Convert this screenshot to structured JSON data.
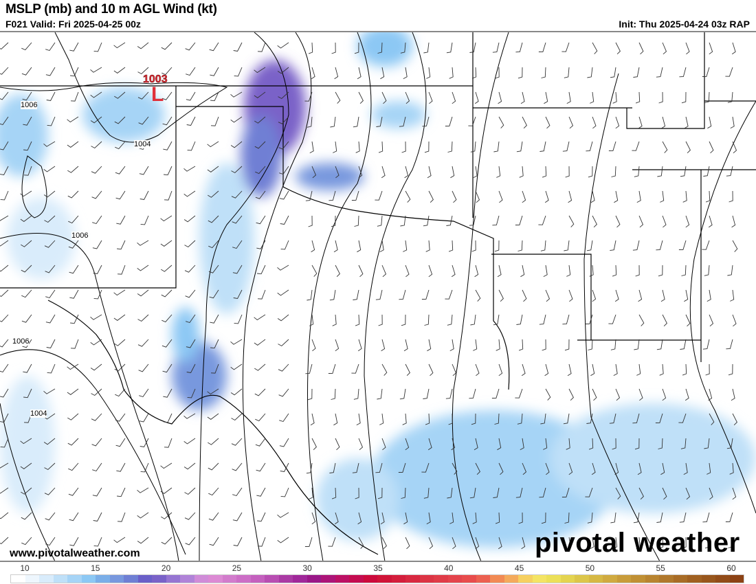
{
  "header": {
    "title": "MSLP (mb) and 10 m AGL Wind (kt)",
    "valid": "F021 Valid: Fri 2025-04-25 00z",
    "init": "Init: Thu 2025-04-24 03z RAP"
  },
  "map": {
    "low_center": {
      "label": "L",
      "pressure": "1003",
      "color": "#e0303a"
    },
    "isobar_labels": [
      "1006",
      "1004",
      "1006",
      "1006",
      "1004"
    ]
  },
  "footer": {
    "website": "www.pivotalweather.com",
    "brand": "pivotal weather"
  },
  "colorbar": {
    "unit": "kt",
    "ticks": [
      "10",
      "15",
      "20",
      "25",
      "30",
      "35",
      "40",
      "45",
      "50",
      "55",
      "60"
    ],
    "colors": [
      "#ffffff",
      "#eef6fd",
      "#d9ecfb",
      "#bfe0f8",
      "#a6d4f6",
      "#8cc8f4",
      "#7aaee8",
      "#7898de",
      "#6f7fd4",
      "#6a5fc8",
      "#7a62c8",
      "#9675d2",
      "#b083d8",
      "#d08cd8",
      "#dc8ad4",
      "#d27ccc",
      "#cc6ec6",
      "#c460be",
      "#b84eb2",
      "#aa3aa4",
      "#a0289a",
      "#9a1888",
      "#ac1478",
      "#bc1064",
      "#c40c50",
      "#cc0a3c",
      "#d01438",
      "#d41e3c",
      "#d82840",
      "#dc3444",
      "#e03c48",
      "#e4444c",
      "#e84c4c",
      "#ec6050",
      "#f28a54",
      "#f4aa5c",
      "#f6d060",
      "#f4e464",
      "#ece058",
      "#e4d450",
      "#dcc64a",
      "#d6b844",
      "#d0aa40",
      "#c89c3a",
      "#c09034",
      "#b88430",
      "#b0782c",
      "#a86c26",
      "#a06020",
      "#98561c",
      "#924c18",
      "#8c4214"
    ]
  }
}
